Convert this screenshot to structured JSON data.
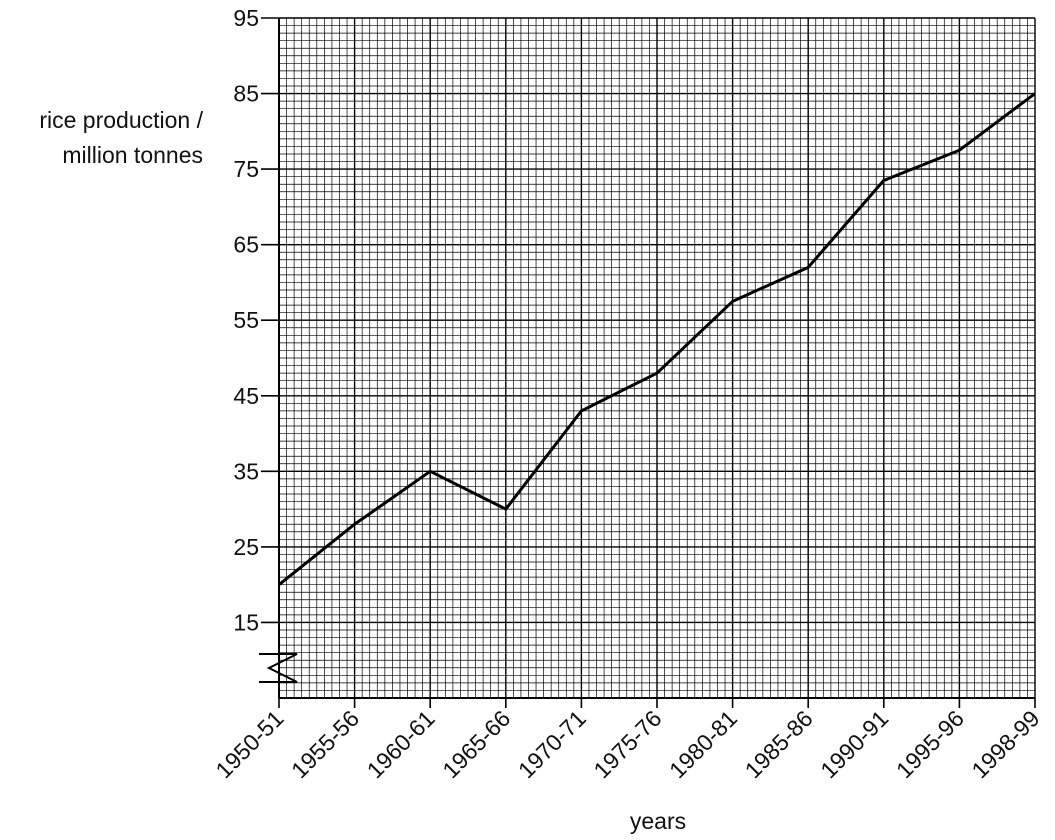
{
  "chart_data": {
    "type": "line",
    "title": "",
    "xlabel": "years",
    "ylabel_line1": "rice production /",
    "ylabel_line2": "million tonnes",
    "categories": [
      "1950-51",
      "1955-56",
      "1960-61",
      "1965-66",
      "1970-71",
      "1975-76",
      "1980-81",
      "1985-86",
      "1990-91",
      "1995-96",
      "1998-99"
    ],
    "series": [
      {
        "values": [
          20,
          28,
          35,
          30,
          43,
          48,
          57.5,
          62,
          73.5,
          77.5,
          85
        ]
      }
    ],
    "ylim": [
      5,
      95
    ],
    "yticks": [
      15,
      25,
      35,
      45,
      55,
      65,
      75,
      85,
      95
    ],
    "axis_break": true,
    "grid": true,
    "colors": {
      "line": "#000000",
      "grid": "#000000"
    }
  }
}
